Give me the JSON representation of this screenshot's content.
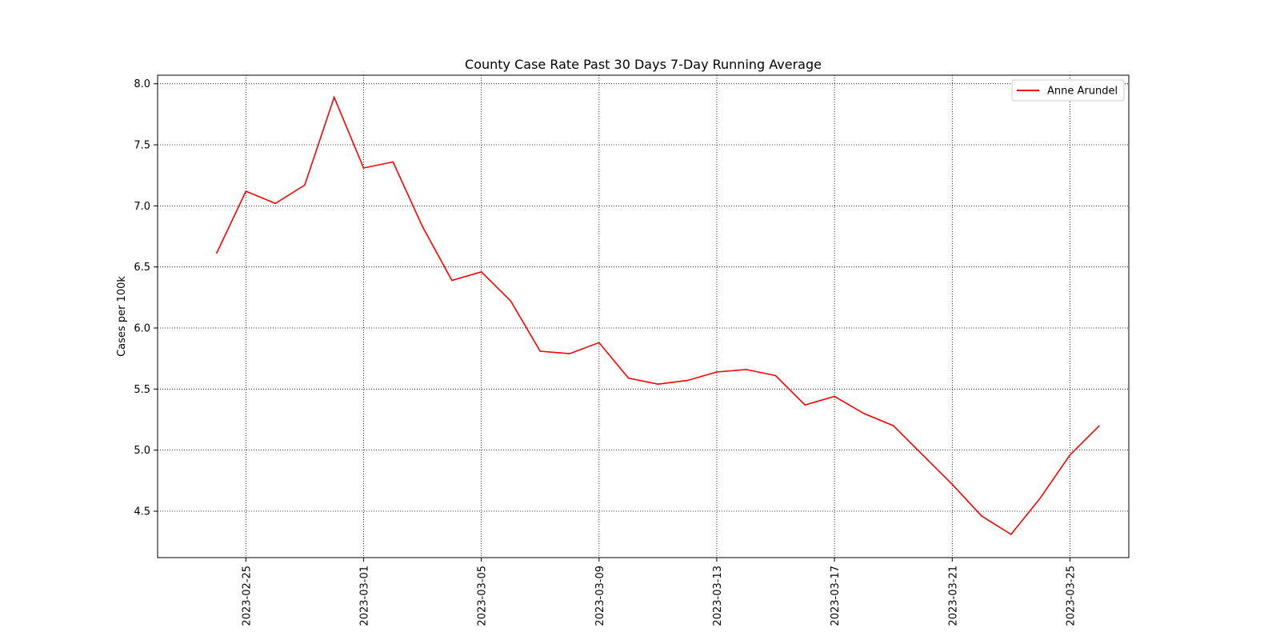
{
  "chart_data": {
    "type": "line",
    "title": "County Case Rate  Past 30 Days 7-Day Running Average",
    "xlabel": "",
    "ylabel": "Cases per 100k",
    "x_type": "date",
    "xlim": [
      "2023-02-22",
      "2023-03-27"
    ],
    "ylim": [
      4.12,
      8.07
    ],
    "x_ticks": [
      "2023-02-25",
      "2023-03-01",
      "2023-03-05",
      "2023-03-09",
      "2023-03-13",
      "2023-03-17",
      "2023-03-21",
      "2023-03-25"
    ],
    "y_ticks": [
      4.5,
      5.0,
      5.5,
      6.0,
      6.5,
      7.0,
      7.5,
      8.0
    ],
    "y_tick_labels": [
      "4.5",
      "5.0",
      "5.5",
      "6.0",
      "6.5",
      "7.0",
      "7.5",
      "8.0"
    ],
    "grid": true,
    "legend_position": "top-right",
    "colors": {
      "line": "#ff0000",
      "grid": "#000000"
    },
    "series": [
      {
        "name": "Anne Arundel",
        "color": "#ff0000",
        "x": [
          "2023-02-24",
          "2023-02-25",
          "2023-02-26",
          "2023-02-27",
          "2023-02-28",
          "2023-03-01",
          "2023-03-02",
          "2023-03-03",
          "2023-03-04",
          "2023-03-05",
          "2023-03-06",
          "2023-03-07",
          "2023-03-08",
          "2023-03-09",
          "2023-03-10",
          "2023-03-11",
          "2023-03-12",
          "2023-03-13",
          "2023-03-14",
          "2023-03-15",
          "2023-03-16",
          "2023-03-17",
          "2023-03-18",
          "2023-03-19",
          "2023-03-20",
          "2023-03-21",
          "2023-03-22",
          "2023-03-23",
          "2023-03-24",
          "2023-03-25",
          "2023-03-26"
        ],
        "values": [
          6.61,
          7.12,
          7.02,
          7.17,
          7.89,
          7.31,
          7.36,
          6.83,
          6.39,
          6.46,
          6.22,
          5.81,
          5.79,
          5.88,
          5.59,
          5.54,
          5.57,
          5.64,
          5.66,
          5.61,
          5.37,
          5.44,
          5.3,
          5.2,
          4.96,
          4.72,
          4.46,
          4.31,
          4.61,
          4.96,
          5.2
        ]
      }
    ]
  }
}
